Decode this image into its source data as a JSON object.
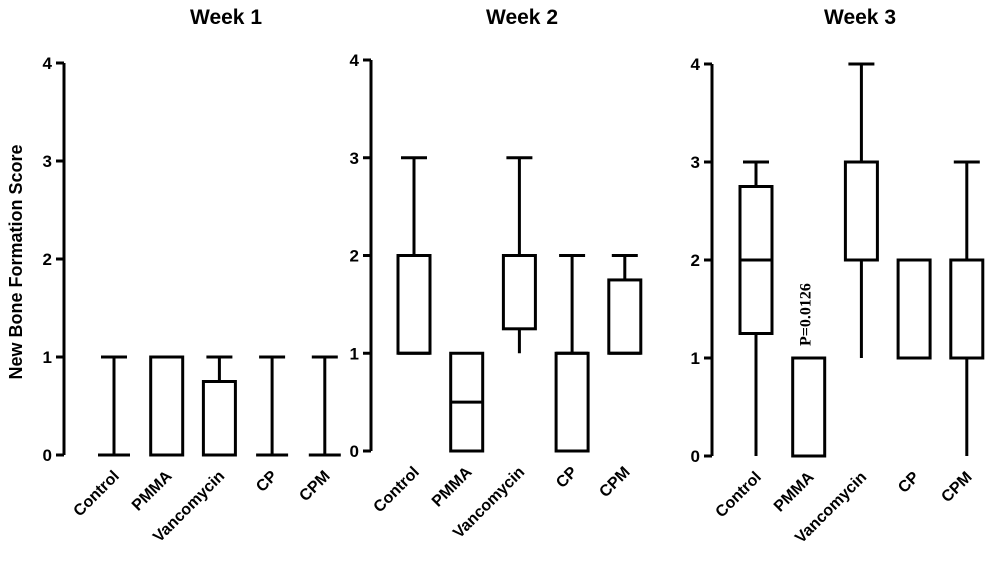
{
  "chart_data": [
    {
      "type": "box",
      "title": "Week 1",
      "ylabel": "New Bone Formation Score",
      "ylim": [
        0,
        4
      ],
      "yticks": [
        "0",
        "1",
        "2",
        "3",
        "4"
      ],
      "categories": [
        "Control",
        "PMMA",
        "Vancomycin",
        "CP",
        "CPM"
      ],
      "boxes": [
        {
          "min": 0,
          "q1": 0,
          "median": 0,
          "q3": 0,
          "max": 1
        },
        {
          "min": 0,
          "q1": 0,
          "median": 0,
          "q3": 1,
          "max": 1
        },
        {
          "min": 0,
          "q1": 0,
          "median": 0,
          "q3": 0.75,
          "max": 1
        },
        {
          "min": 0,
          "q1": 0,
          "median": 0,
          "q3": 0,
          "max": 1
        },
        {
          "min": 0,
          "q1": 0,
          "median": 0,
          "q3": 0,
          "max": 1
        }
      ],
      "annotations": []
    },
    {
      "type": "box",
      "title": "Week 2",
      "ylabel": "",
      "ylim": [
        0,
        4
      ],
      "yticks": [
        "0",
        "1",
        "2",
        "3",
        "4"
      ],
      "categories": [
        "Control",
        "PMMA",
        "Vancomycin",
        "CP",
        "CPM"
      ],
      "boxes": [
        {
          "min": 1,
          "q1": 1,
          "median": 1,
          "q3": 2,
          "max": 3
        },
        {
          "min": 0,
          "q1": 0,
          "median": 0.5,
          "q3": 1,
          "max": 1
        },
        {
          "min": 1,
          "q1": 1.25,
          "median": 2,
          "q3": 2,
          "max": 3
        },
        {
          "min": 0,
          "q1": 0,
          "median": 1,
          "q3": 1,
          "max": 2
        },
        {
          "min": 1,
          "q1": 1,
          "median": 1,
          "q3": 1.75,
          "max": 2
        }
      ],
      "annotations": []
    },
    {
      "type": "box",
      "title": "Week 3",
      "ylabel": "",
      "ylim": [
        0,
        4
      ],
      "yticks": [
        "0",
        "1",
        "2",
        "3",
        "4"
      ],
      "categories": [
        "Control",
        "PMMA",
        "Vancomycin",
        "CP",
        "CPM"
      ],
      "boxes": [
        {
          "min": 0,
          "q1": 1.25,
          "median": 2,
          "q3": 2.75,
          "max": 3
        },
        {
          "min": 0,
          "q1": 0,
          "median": 0,
          "q3": 1,
          "max": 1
        },
        {
          "min": 1,
          "q1": 2,
          "median": 2,
          "q3": 3,
          "max": 4
        },
        {
          "min": 1,
          "q1": 1,
          "median": 2,
          "q3": 2,
          "max": 2
        },
        {
          "min": 0,
          "q1": 1,
          "median": 2,
          "q3": 2,
          "max": 3
        }
      ],
      "annotations": [
        {
          "category": "PMMA",
          "text": "P=0.0126"
        }
      ]
    }
  ]
}
